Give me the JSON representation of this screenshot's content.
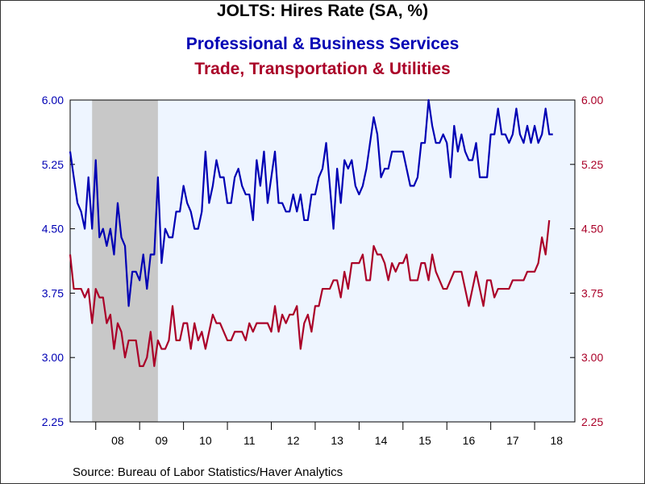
{
  "chart_data": {
    "type": "line",
    "title": "JOLTS: Hires Rate (SA, %)",
    "source": "Source:  Bureau of Labor Statistics/Haver Analytics",
    "x_ticks": [
      "08",
      "09",
      "10",
      "11",
      "12",
      "13",
      "14",
      "15",
      "16",
      "17",
      "18"
    ],
    "x_range": [
      2007.4167,
      2018.9167
    ],
    "y_left": {
      "range": [
        2.25,
        6.0
      ],
      "ticks": [
        "2.25",
        "3.00",
        "3.75",
        "4.50",
        "5.25",
        "6.00"
      ]
    },
    "y_right": {
      "range": [
        2.25,
        6.0
      ],
      "ticks": [
        "2.25",
        "3.00",
        "3.75",
        "4.50",
        "5.25",
        "6.00"
      ]
    },
    "recession": {
      "start": 2007.9167,
      "end": 2009.4167,
      "color": "#c8c8c8"
    },
    "plot_background": "#eef5ff",
    "grid": false,
    "start": [
      2007,
      6
    ],
    "series": [
      {
        "name": "Professional & Business Services",
        "color": "#0000b4",
        "values": [
          5.4,
          5.1,
          4.8,
          4.7,
          4.5,
          5.1,
          4.5,
          5.3,
          4.4,
          4.5,
          4.3,
          4.5,
          4.2,
          4.8,
          4.4,
          4.3,
          3.6,
          4.0,
          4.0,
          3.9,
          4.2,
          3.8,
          4.2,
          4.2,
          5.1,
          4.1,
          4.5,
          4.4,
          4.4,
          4.7,
          4.7,
          5.0,
          4.8,
          4.7,
          4.5,
          4.5,
          4.7,
          5.4,
          4.8,
          5.0,
          5.3,
          5.1,
          5.1,
          4.8,
          4.8,
          5.1,
          5.2,
          5.0,
          4.9,
          4.9,
          4.6,
          5.3,
          5.0,
          5.4,
          4.8,
          5.1,
          5.4,
          4.8,
          4.8,
          4.7,
          4.7,
          4.9,
          4.7,
          4.9,
          4.6,
          4.6,
          4.9,
          4.9,
          5.1,
          5.2,
          5.5,
          5.0,
          4.5,
          5.2,
          4.8,
          5.3,
          5.2,
          5.3,
          5.0,
          4.9,
          5.0,
          5.2,
          5.5,
          5.8,
          5.6,
          5.1,
          5.2,
          5.2,
          5.4,
          5.4,
          5.4,
          5.4,
          5.2,
          5.0,
          5.0,
          5.1,
          5.5,
          5.5,
          6.0,
          5.7,
          5.5,
          5.5,
          5.6,
          5.5,
          5.1,
          5.7,
          5.4,
          5.6,
          5.4,
          5.3,
          5.3,
          5.5,
          5.1,
          5.1,
          5.1,
          5.6,
          5.6,
          5.9,
          5.6,
          5.6,
          5.5,
          5.6,
          5.9,
          5.6,
          5.5,
          5.7,
          5.5,
          5.7,
          5.5,
          5.6,
          5.9,
          5.6,
          5.6
        ]
      },
      {
        "name": "Trade, Transportation & Utilities",
        "color": "#aa0028",
        "values": [
          4.2,
          3.8,
          3.8,
          3.8,
          3.7,
          3.8,
          3.4,
          3.8,
          3.7,
          3.7,
          3.4,
          3.5,
          3.1,
          3.4,
          3.3,
          3.0,
          3.2,
          3.2,
          3.2,
          2.9,
          2.9,
          3.0,
          3.3,
          2.9,
          3.2,
          3.1,
          3.1,
          3.2,
          3.6,
          3.2,
          3.2,
          3.4,
          3.4,
          3.1,
          3.4,
          3.2,
          3.3,
          3.1,
          3.3,
          3.5,
          3.4,
          3.4,
          3.3,
          3.2,
          3.2,
          3.3,
          3.3,
          3.3,
          3.2,
          3.4,
          3.3,
          3.4,
          3.4,
          3.4,
          3.4,
          3.3,
          3.6,
          3.3,
          3.5,
          3.4,
          3.5,
          3.5,
          3.6,
          3.1,
          3.4,
          3.5,
          3.3,
          3.6,
          3.6,
          3.8,
          3.8,
          3.8,
          3.9,
          3.9,
          3.7,
          4.0,
          3.8,
          4.1,
          4.1,
          4.1,
          4.2,
          3.9,
          3.9,
          4.3,
          4.2,
          4.2,
          4.1,
          3.9,
          4.1,
          4.0,
          4.1,
          4.1,
          4.2,
          3.9,
          3.9,
          3.9,
          4.1,
          4.1,
          3.9,
          4.2,
          4.0,
          3.9,
          3.8,
          3.8,
          3.9,
          4.0,
          4.0,
          4.0,
          3.8,
          3.6,
          3.8,
          4.0,
          3.8,
          3.6,
          3.9,
          3.9,
          3.7,
          3.8,
          3.8,
          3.8,
          3.8,
          3.9,
          3.9,
          3.9,
          3.9,
          4.0,
          4.0,
          4.0,
          4.1,
          4.4,
          4.2,
          4.6
        ]
      }
    ]
  }
}
